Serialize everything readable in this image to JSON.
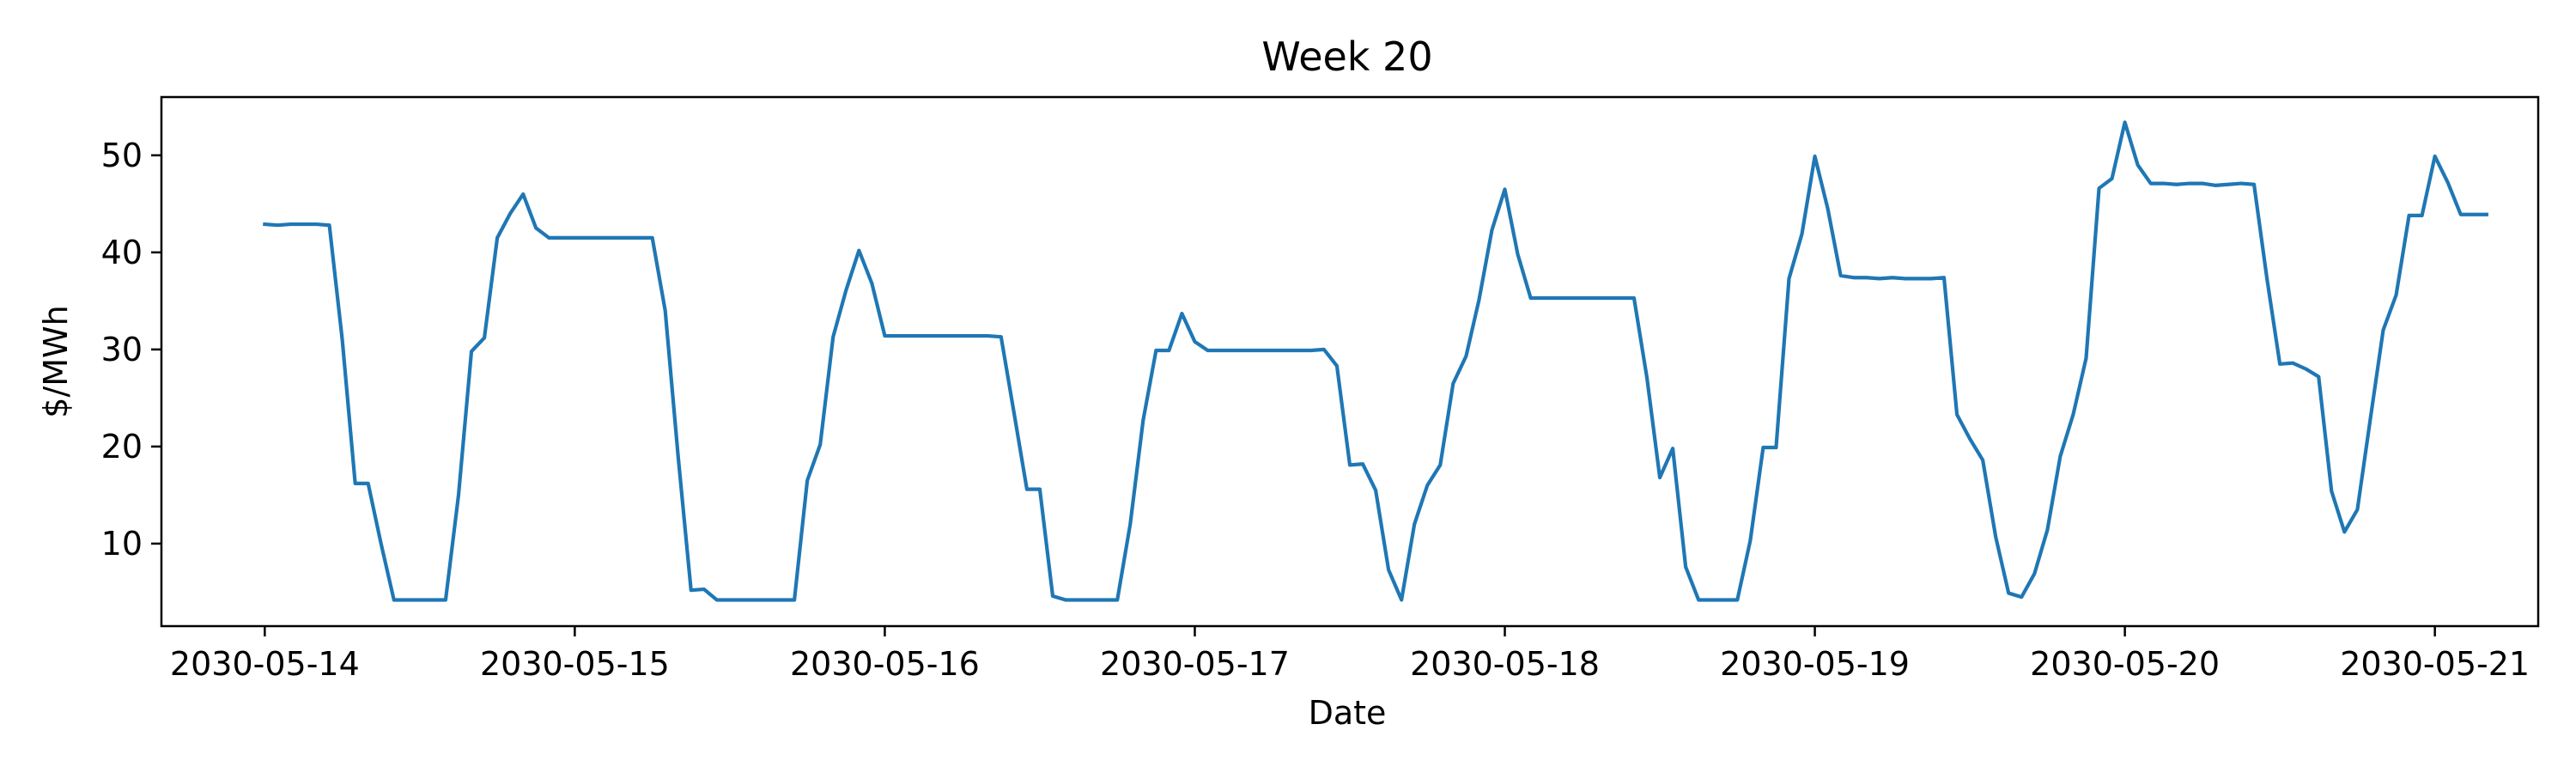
{
  "chart_data": {
    "type": "line",
    "title": "Week 20",
    "xlabel": "Date",
    "ylabel": "$/MWh",
    "x_ticks": [
      "2030-05-14",
      "2030-05-15",
      "2030-05-16",
      "2030-05-17",
      "2030-05-18",
      "2030-05-19",
      "2030-05-20",
      "2030-05-21"
    ],
    "y_ticks": [
      10,
      20,
      30,
      40,
      50
    ],
    "xlim": [
      "2030-05-13 16:00",
      "2030-05-21 08:00"
    ],
    "ylim": [
      1.5,
      56
    ],
    "grid": false,
    "color": "#1f77b4",
    "x_start": "2030-05-14 00:00",
    "x_step_hours": 1,
    "values": [
      42.9,
      42.8,
      42.9,
      42.9,
      42.9,
      42.8,
      31.0,
      16.2,
      16.2,
      10.0,
      4.2,
      4.2,
      4.2,
      4.2,
      4.2,
      15.0,
      29.8,
      31.2,
      41.5,
      44.0,
      46.0,
      42.5,
      41.5,
      41.5,
      41.5,
      41.5,
      41.5,
      41.5,
      41.5,
      41.5,
      41.5,
      34.0,
      19.0,
      5.2,
      5.3,
      4.2,
      4.2,
      4.2,
      4.2,
      4.2,
      4.2,
      4.2,
      16.5,
      20.2,
      31.3,
      36.1,
      40.2,
      36.8,
      31.4,
      31.4,
      31.4,
      31.4,
      31.4,
      31.4,
      31.4,
      31.4,
      31.4,
      31.3,
      23.5,
      15.6,
      15.6,
      4.6,
      4.2,
      4.2,
      4.2,
      4.2,
      4.2,
      12.0,
      22.7,
      29.9,
      29.9,
      33.7,
      30.8,
      29.9,
      29.9,
      29.9,
      29.9,
      29.9,
      29.9,
      29.9,
      29.9,
      29.9,
      30.0,
      28.3,
      18.1,
      18.2,
      15.5,
      7.3,
      4.2,
      12.0,
      16.0,
      18.1,
      26.5,
      29.3,
      35.1,
      42.3,
      46.5,
      39.8,
      35.3,
      35.3,
      35.3,
      35.3,
      35.3,
      35.3,
      35.3,
      35.3,
      35.3,
      27.1,
      16.8,
      19.8,
      7.6,
      4.2,
      4.2,
      4.2,
      4.2,
      10.3,
      19.9,
      19.9,
      37.3,
      41.9,
      49.9,
      44.5,
      37.6,
      37.4,
      37.4,
      37.3,
      37.4,
      37.3,
      37.3,
      37.3,
      37.4,
      23.3,
      20.8,
      18.6,
      10.7,
      4.9,
      4.5,
      6.9,
      11.4,
      19.0,
      23.3,
      29.1,
      46.6,
      47.6,
      53.4,
      49.0,
      47.1,
      47.1,
      47.0,
      47.1,
      47.1,
      46.9,
      47.0,
      47.1,
      47.0,
      37.3,
      28.5,
      28.6,
      28.0,
      27.2,
      15.4,
      11.2,
      13.5,
      22.8,
      32.0,
      35.6,
      43.8,
      43.8,
      49.9,
      47.2,
      43.9,
      43.9,
      43.9
    ]
  }
}
